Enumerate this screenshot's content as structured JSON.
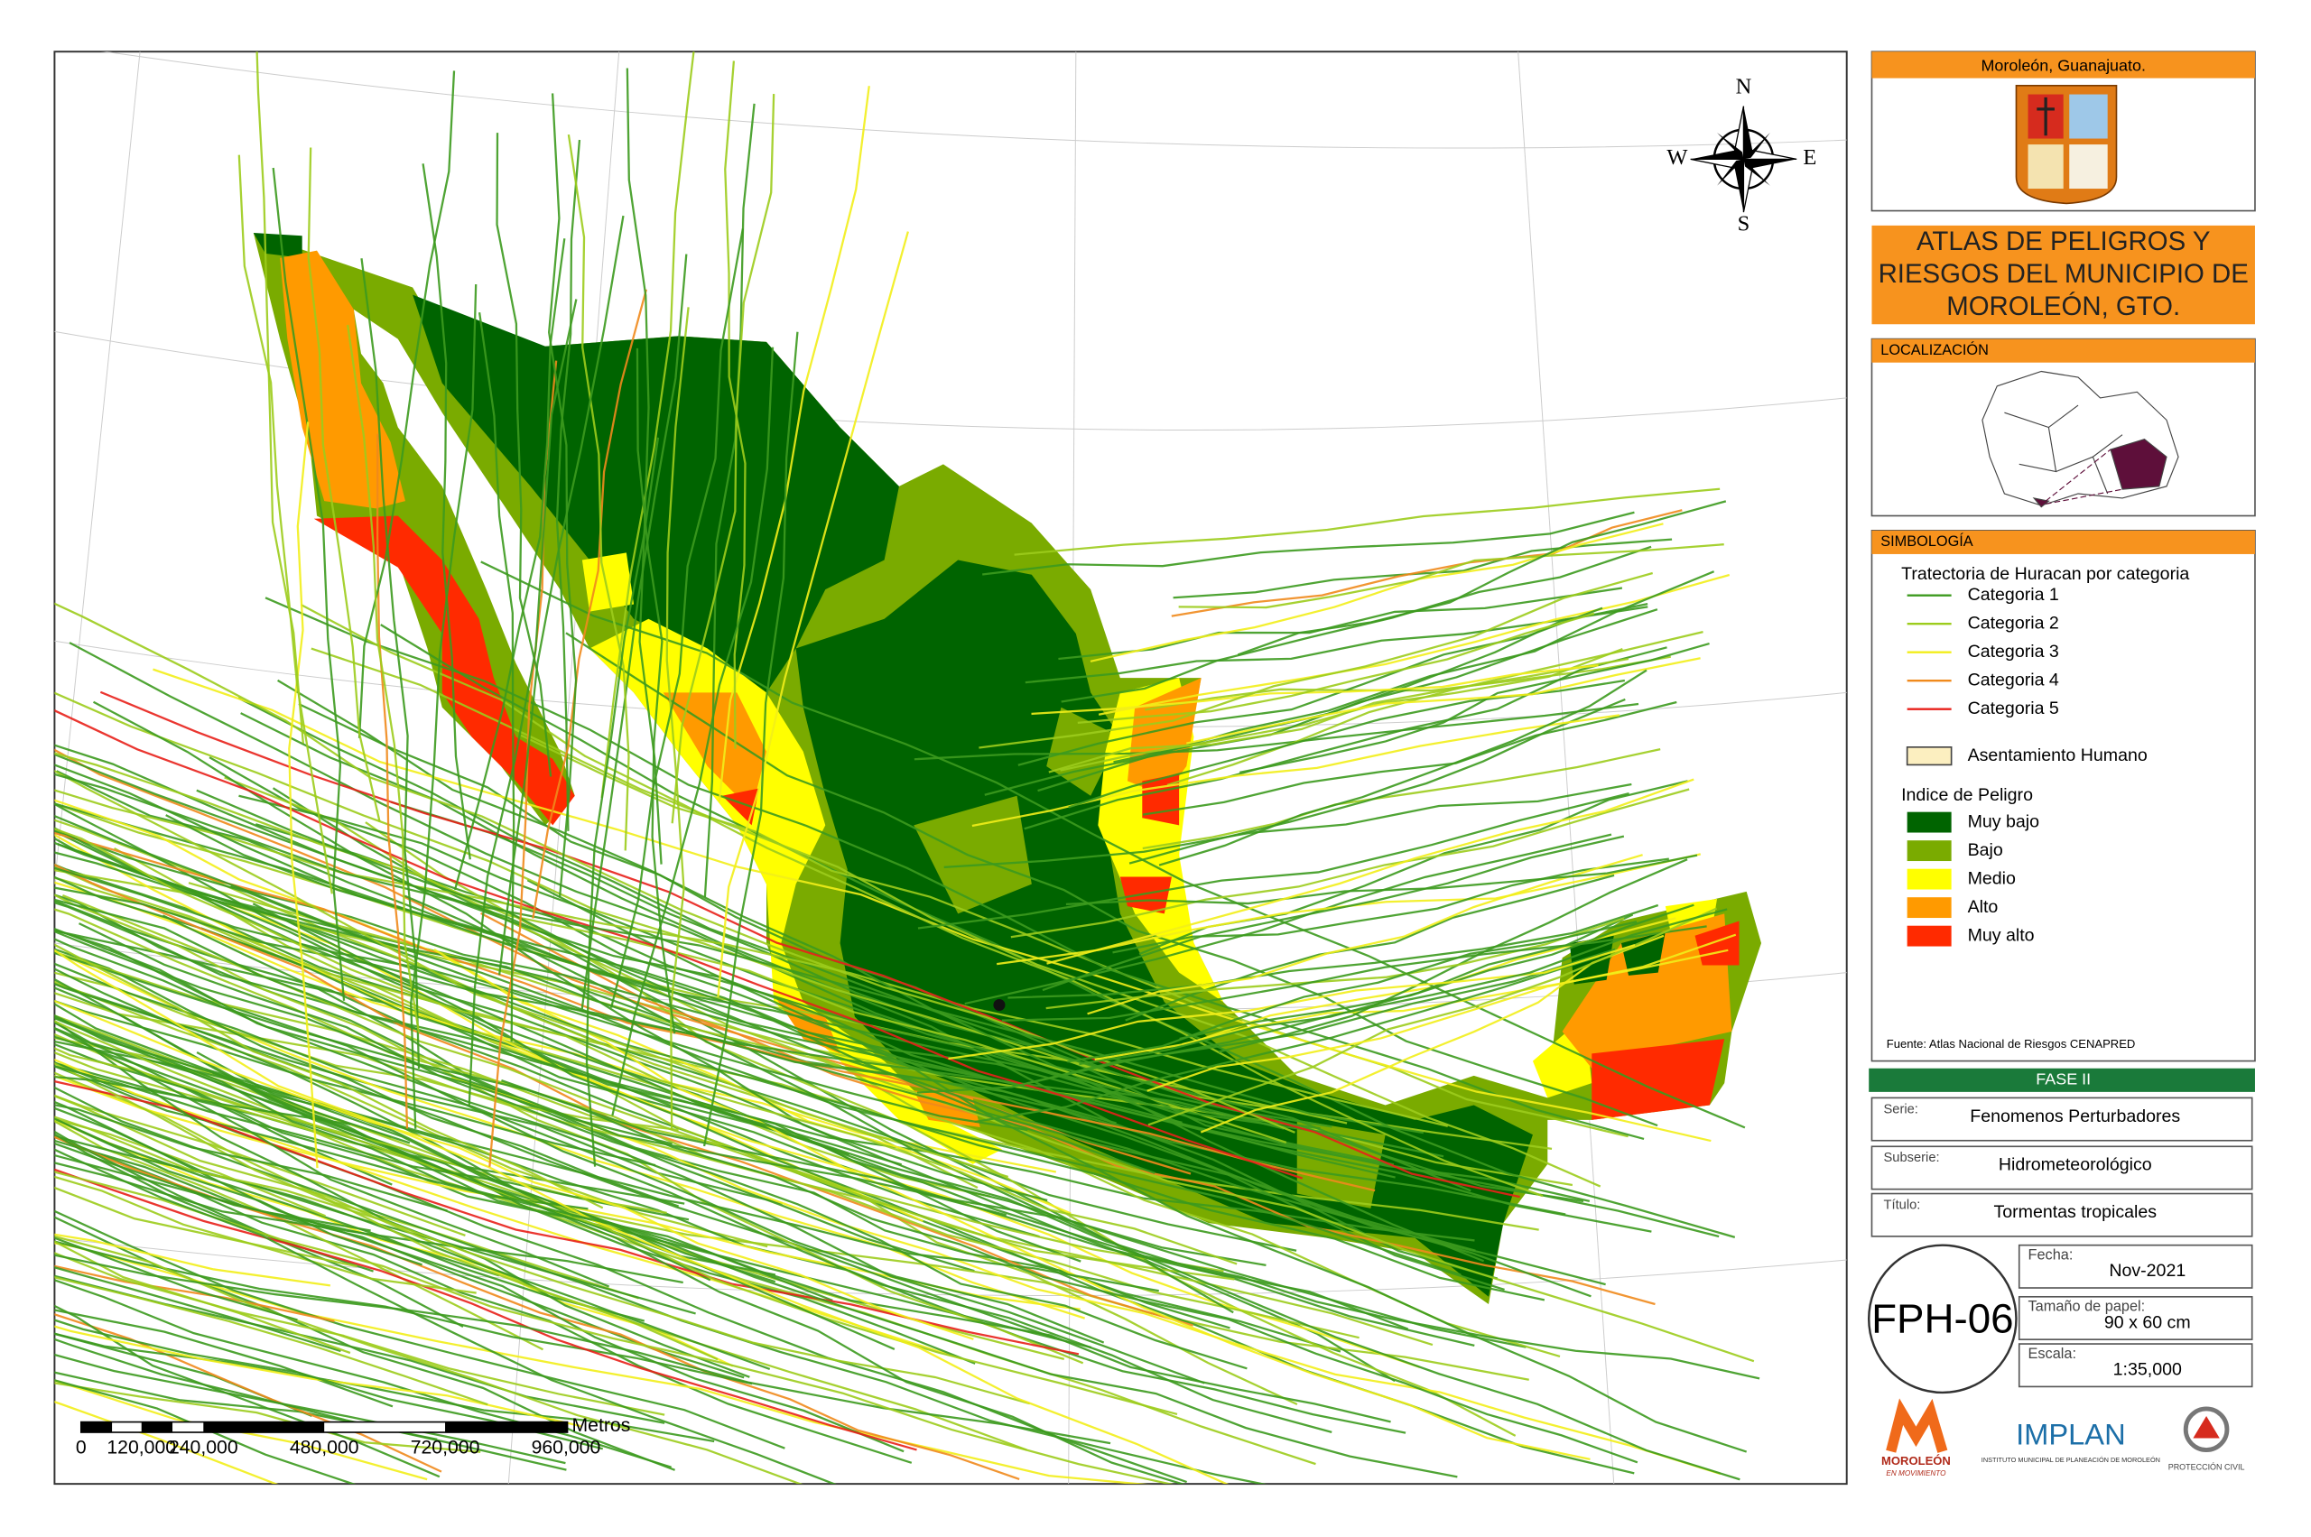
{
  "map": {
    "compass": {
      "n": "N",
      "s": "S",
      "e": "E",
      "w": "W"
    },
    "scale_bar": {
      "unit": "Metros",
      "labels": [
        "0",
        "120,000",
        "240,000",
        "480,000",
        "720,000",
        "960,000"
      ]
    }
  },
  "panel": {
    "municipality": "Moroleón, Guanajuato.",
    "title": [
      "ATLAS DE PELIGROS Y",
      "RIESGOS DEL MUNICIPIO DE",
      "MOROLEÓN, GTO."
    ],
    "location_heading": "LOCALIZACIÓN",
    "symbology_heading": "SIMBOLOGÍA",
    "hurricane_heading": "Tratectoria de Huracan por categoria",
    "hurricane_categories": [
      {
        "name": "Categoria 1",
        "color": "#3c9a1e"
      },
      {
        "name": "Categoria 2",
        "color": "#9ccc1c"
      },
      {
        "name": "Categoria 3",
        "color": "#f2ee1a"
      },
      {
        "name": "Categoria 4",
        "color": "#f08a1c"
      },
      {
        "name": "Categoria 5",
        "color": "#e8201a"
      }
    ],
    "settlement": {
      "name": "Asentamiento Humano",
      "color": "#fcefc0"
    },
    "hazard_heading": "Indice de Peligro",
    "hazard_levels": [
      {
        "name": "Muy bajo",
        "color": "#006400"
      },
      {
        "name": "Bajo",
        "color": "#7aab00"
      },
      {
        "name": "Medio",
        "color": "#ffff00"
      },
      {
        "name": "Alto",
        "color": "#ff9a00"
      },
      {
        "name": "Muy alto",
        "color": "#ff2a00"
      }
    ],
    "source": "Fuente: Atlas Nacional de Riesgos CENAPRED",
    "phase": "FASE II",
    "fields": [
      {
        "label": "Serie:",
        "value": "Fenomenos Perturbadores"
      },
      {
        "label": "Subserie:",
        "value": "Hidrometeorológico"
      },
      {
        "label": "Título:",
        "value": "Tormentas tropicales"
      }
    ],
    "code": "FPH-06",
    "details": [
      {
        "label": "Fecha:",
        "value": "Nov-2021"
      },
      {
        "label": "Tamaño de papel:",
        "value": "90 x 60 cm"
      },
      {
        "label": "Escala:",
        "value": "1:35,000"
      }
    ],
    "logos": {
      "moroleon": "MOROLEÓN",
      "moroleon_tag": "EN MOVIMIENTO",
      "implan": "IMPLAN",
      "implan_full": "INSTITUTO MUNICIPAL DE PLANEACIÓN DE MOROLEÓN",
      "pc": "PROTECCIÓN CIVIL"
    }
  }
}
